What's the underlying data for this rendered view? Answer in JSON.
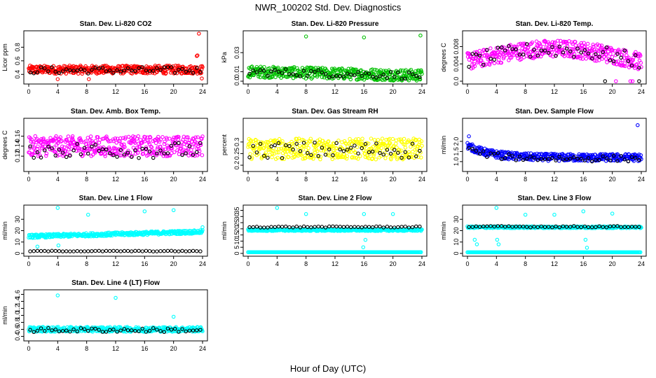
{
  "figure": {
    "title": "NWR_100202  Std. Dev. Diagnostics",
    "xlabel": "Hour of Day (UTC)"
  },
  "chart_data": [
    {
      "type": "scatter",
      "title": "Stan. Dev. Li-820 CO2",
      "ylabel": "Licor ppm",
      "xlim": [
        0,
        24
      ],
      "ylim": [
        0.3,
        1.0
      ],
      "xticks": [
        0,
        4,
        8,
        12,
        16,
        20,
        24
      ],
      "yticks": [
        0.4,
        0.6,
        0.8
      ],
      "dense": {
        "color": "#ff0000",
        "from": 0,
        "to": 24,
        "base": 0.47,
        "spread": 0.06
      },
      "markers": {
        "color": "#000000",
        "from": 0.2,
        "to": 24,
        "step": 0.5,
        "base": 0.46,
        "spread": 0.05
      },
      "outliers": [
        {
          "x": 23.5,
          "y": 1.0,
          "color": "#ff0000"
        },
        {
          "x": 23.3,
          "y": 0.68,
          "color": "#ff0000"
        },
        {
          "x": 23.2,
          "y": 0.67,
          "color": "#ff0000"
        },
        {
          "x": 4.0,
          "y": 0.33,
          "color": "#ff0000"
        },
        {
          "x": 8.3,
          "y": 0.33,
          "color": "#ff0000"
        },
        {
          "x": 23.9,
          "y": 0.34,
          "color": "#ff0000"
        }
      ]
    },
    {
      "type": "scatter",
      "title": "Stan. Dev. Li-820 Pressure",
      "ylabel": "kPa",
      "xlim": [
        0,
        24
      ],
      "ylim": [
        0,
        0.05
      ],
      "xticks": [
        0,
        4,
        8,
        12,
        16,
        20,
        24
      ],
      "yticks": [
        0.0,
        0.01,
        0.03
      ],
      "dense": {
        "color": "#00c000",
        "from": 0,
        "to": 24,
        "base": 0.01,
        "spread": 0.006,
        "trend": -0.004
      },
      "markers": {
        "color": "#000000",
        "from": 0.2,
        "to": 24,
        "step": 0.5,
        "base": 0.01,
        "spread": 0.004,
        "trend": -0.004
      },
      "outliers": [
        {
          "x": 8.0,
          "y": 0.047,
          "color": "#00c000"
        },
        {
          "x": 16.0,
          "y": 0.046,
          "color": "#00c000"
        },
        {
          "x": 23.8,
          "y": 0.048,
          "color": "#00c000"
        }
      ]
    },
    {
      "type": "scatter",
      "title": "Stan. Dev. Li-820 Temp.",
      "ylabel": "degrees C",
      "xlim": [
        0,
        24
      ],
      "ylim": [
        0,
        0.011
      ],
      "xticks": [
        0,
        4,
        8,
        12,
        16,
        20,
        24
      ],
      "yticks": [
        0.0,
        0.004,
        0.008
      ],
      "dense": {
        "color": "#ff00ff",
        "from": 0,
        "to": 24,
        "base": 0.0045,
        "spread": 0.002,
        "hump": 0.003
      },
      "markers": {
        "color": "#000000",
        "from": 0.2,
        "to": 24,
        "step": 0.5,
        "base": 0.0045,
        "spread": 0.0018,
        "hump": 0.0028
      },
      "outliers": [
        {
          "x": 22.5,
          "y": 0.0,
          "color": "#ff00ff"
        },
        {
          "x": 22.8,
          "y": 0.0,
          "color": "#ff00ff"
        },
        {
          "x": 20.5,
          "y": 0.0,
          "color": "#ff00ff"
        },
        {
          "x": 19.0,
          "y": 0.0,
          "color": "#000000"
        },
        {
          "x": 23.7,
          "y": 0.0,
          "color": "#000000"
        }
      ]
    },
    {
      "type": "scatter",
      "title": "Stan. Dev. Amb. Box Temp.",
      "ylabel": "degrees C",
      "xlim": [
        0,
        24
      ],
      "ylim": [
        0.095,
        0.19
      ],
      "xticks": [
        0,
        4,
        8,
        12,
        16,
        20,
        24
      ],
      "yticks": [
        0.12,
        0.14,
        0.16
      ],
      "dense": {
        "color": "#ff00ff",
        "from": 0,
        "to": 24,
        "base": 0.14,
        "spread": 0.02
      },
      "markers": {
        "color": "#000000",
        "from": 0.2,
        "to": 24,
        "step": 0.5,
        "base": 0.132,
        "spread": 0.016
      },
      "outliers": []
    },
    {
      "type": "scatter",
      "title": "Stan. Dev. Gas Stream RH",
      "ylabel": "percent",
      "xlim": [
        0,
        24
      ],
      "ylim": [
        0.185,
        0.39
      ],
      "xticks": [
        0,
        4,
        8,
        12,
        16,
        20,
        24
      ],
      "yticks": [
        0.2,
        0.25,
        0.3
      ],
      "dense": {
        "color": "#ffff00",
        "from": 0,
        "to": 24,
        "base": 0.27,
        "spread": 0.045
      },
      "markers": {
        "color": "#000000",
        "from": 0.2,
        "to": 24,
        "step": 0.5,
        "base": 0.265,
        "spread": 0.035
      },
      "outliers": []
    },
    {
      "type": "scatter",
      "title": "Stan. Dev. Sample Flow",
      "ylabel": "ml/min",
      "xlim": [
        0,
        24
      ],
      "ylim": [
        0.65,
        3.0
      ],
      "xticks": [
        0,
        4,
        8,
        12,
        16,
        20,
        24
      ],
      "yticks": [
        1.0,
        1.5,
        2.0
      ],
      "dense": {
        "color": "#0000ff",
        "from": 0,
        "to": 24,
        "base": 1.2,
        "spread": 0.18,
        "decay": 0.6
      },
      "markers": {
        "color": "#000000",
        "from": 0.2,
        "to": 24,
        "step": 0.5,
        "base": 1.15,
        "spread": 0.15,
        "decay": 0.5
      },
      "outliers": [
        {
          "x": 23.5,
          "y": 2.8,
          "color": "#0000ff"
        },
        {
          "x": 0.2,
          "y": 2.25,
          "color": "#0000ff"
        }
      ]
    },
    {
      "type": "scatter",
      "title": "Stan. Dev. Line 1 Flow",
      "ylabel": "ml/min",
      "xlim": [
        0,
        24
      ],
      "ylim": [
        0,
        40
      ],
      "xticks": [
        0,
        4,
        8,
        12,
        16,
        20,
        24
      ],
      "yticks": [
        0,
        10,
        20,
        30
      ],
      "dense": {
        "color": "#00ffff",
        "from": 0,
        "to": 24,
        "base": 15,
        "spread": 1.5,
        "trend": 4
      },
      "markers": {
        "color": "#000000",
        "from": 0.2,
        "to": 24,
        "step": 0.5,
        "base": 2.0,
        "spread": 0.3
      },
      "outliers": [
        {
          "x": 4.0,
          "y": 40,
          "color": "#00ffff"
        },
        {
          "x": 8.2,
          "y": 34,
          "color": "#00ffff"
        },
        {
          "x": 16.0,
          "y": 37,
          "color": "#00ffff"
        },
        {
          "x": 20.0,
          "y": 38,
          "color": "#00ffff"
        },
        {
          "x": 24.0,
          "y": 23,
          "color": "#00ffff"
        },
        {
          "x": 4.1,
          "y": 7,
          "color": "#00ffff"
        },
        {
          "x": 1.2,
          "y": 6,
          "color": "#00ffff"
        }
      ]
    },
    {
      "type": "scatter",
      "title": "Stan. Dev. Line 2 Flow",
      "ylabel": "ml/min",
      "xlim": [
        0,
        24
      ],
      "ylim": [
        0,
        37
      ],
      "xticks": [
        0,
        4,
        8,
        12,
        16,
        20,
        24
      ],
      "yticks": [
        0,
        5,
        10,
        15,
        20,
        25,
        30,
        35
      ],
      "dense": {
        "color": "#00ffff",
        "from": 0,
        "to": 24,
        "base": 19,
        "spread": 0.8
      },
      "low": {
        "color": "#00ffff",
        "value": 1.0
      },
      "markers": {
        "color": "#000000",
        "from": 0.2,
        "to": 24,
        "step": 0.5,
        "base": 21.5,
        "spread": 0.5
      },
      "outliers": [
        {
          "x": 4.0,
          "y": 37,
          "color": "#00ffff"
        },
        {
          "x": 8.0,
          "y": 32,
          "color": "#00ffff"
        },
        {
          "x": 16.0,
          "y": 32,
          "color": "#00ffff"
        },
        {
          "x": 20.0,
          "y": 32,
          "color": "#00ffff"
        },
        {
          "x": 16.2,
          "y": 11,
          "color": "#00ffff"
        },
        {
          "x": 15.9,
          "y": 5,
          "color": "#00ffff"
        }
      ]
    },
    {
      "type": "scatter",
      "title": "Stan. Dev. Line 3 Flow",
      "ylabel": "ml/min",
      "xlim": [
        0,
        24
      ],
      "ylim": [
        0,
        40
      ],
      "xticks": [
        0,
        4,
        8,
        12,
        16,
        20,
        24
      ],
      "yticks": [
        0,
        10,
        20,
        30
      ],
      "dense": {
        "color": "#00ffff",
        "from": 0,
        "to": 24,
        "base": 23,
        "spread": 0.8
      },
      "low": {
        "color": "#00ffff",
        "value": 1.0
      },
      "markers": {
        "color": "#000000",
        "from": 0.2,
        "to": 24,
        "step": 0.5,
        "base": 23.5,
        "spread": 0.6
      },
      "outliers": [
        {
          "x": 4.0,
          "y": 40,
          "color": "#00ffff"
        },
        {
          "x": 8.0,
          "y": 34,
          "color": "#00ffff"
        },
        {
          "x": 12.0,
          "y": 34,
          "color": "#00ffff"
        },
        {
          "x": 16.0,
          "y": 37,
          "color": "#00ffff"
        },
        {
          "x": 20.0,
          "y": 35,
          "color": "#00ffff"
        },
        {
          "x": 1.0,
          "y": 12,
          "color": "#00ffff"
        },
        {
          "x": 1.3,
          "y": 8,
          "color": "#00ffff"
        },
        {
          "x": 4.1,
          "y": 12,
          "color": "#00ffff"
        },
        {
          "x": 4.3,
          "y": 8,
          "color": "#00ffff"
        },
        {
          "x": 16.3,
          "y": 12,
          "color": "#00ffff"
        },
        {
          "x": 16.5,
          "y": 5,
          "color": "#00ffff"
        }
      ]
    },
    {
      "type": "scatter",
      "title": "Stan. Dev. Line 4 (LT) Flow",
      "ylabel": "ml/min",
      "xlim": [
        0,
        24
      ],
      "ylim": [
        0.35,
        1.65
      ],
      "xticks": [
        0,
        4,
        8,
        12,
        16,
        20,
        24
      ],
      "yticks": [
        0.4,
        0.6,
        0.8,
        1.0,
        1.2,
        1.4,
        1.6
      ],
      "dense": {
        "color": "#00ffff",
        "from": 0,
        "to": 24,
        "base": 0.6,
        "spread": 0.07
      },
      "markers": {
        "color": "#000000",
        "from": 0.2,
        "to": 24,
        "step": 0.5,
        "base": 0.58,
        "spread": 0.06
      },
      "outliers": [
        {
          "x": 4.0,
          "y": 1.57,
          "color": "#00ffff"
        },
        {
          "x": 12.0,
          "y": 1.5,
          "color": "#00ffff"
        },
        {
          "x": 20.0,
          "y": 0.96,
          "color": "#00ffff"
        }
      ]
    }
  ]
}
